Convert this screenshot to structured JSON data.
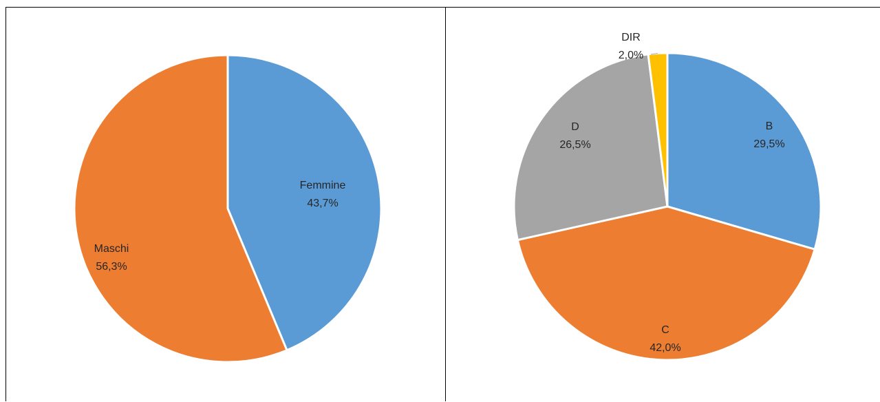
{
  "chart_data": [
    {
      "type": "pie",
      "title": "",
      "slices": [
        {
          "label": "Femmine",
          "value": 43.7,
          "display": "43,7%",
          "color": "#5B9BD5"
        },
        {
          "label": "Maschi",
          "value": 56.3,
          "display": "56,3%",
          "color": "#ED7D31"
        }
      ]
    },
    {
      "type": "pie",
      "title": "",
      "slices": [
        {
          "label": "B",
          "value": 29.5,
          "display": "29,5%",
          "color": "#5B9BD5"
        },
        {
          "label": "C",
          "value": 42.0,
          "display": "42,0%",
          "color": "#ED7D31"
        },
        {
          "label": "D",
          "value": 26.5,
          "display": "26,5%",
          "color": "#A5A5A5"
        },
        {
          "label": "DIR",
          "value": 2.0,
          "display": "2,0%",
          "color": "#FFC000"
        }
      ]
    }
  ]
}
